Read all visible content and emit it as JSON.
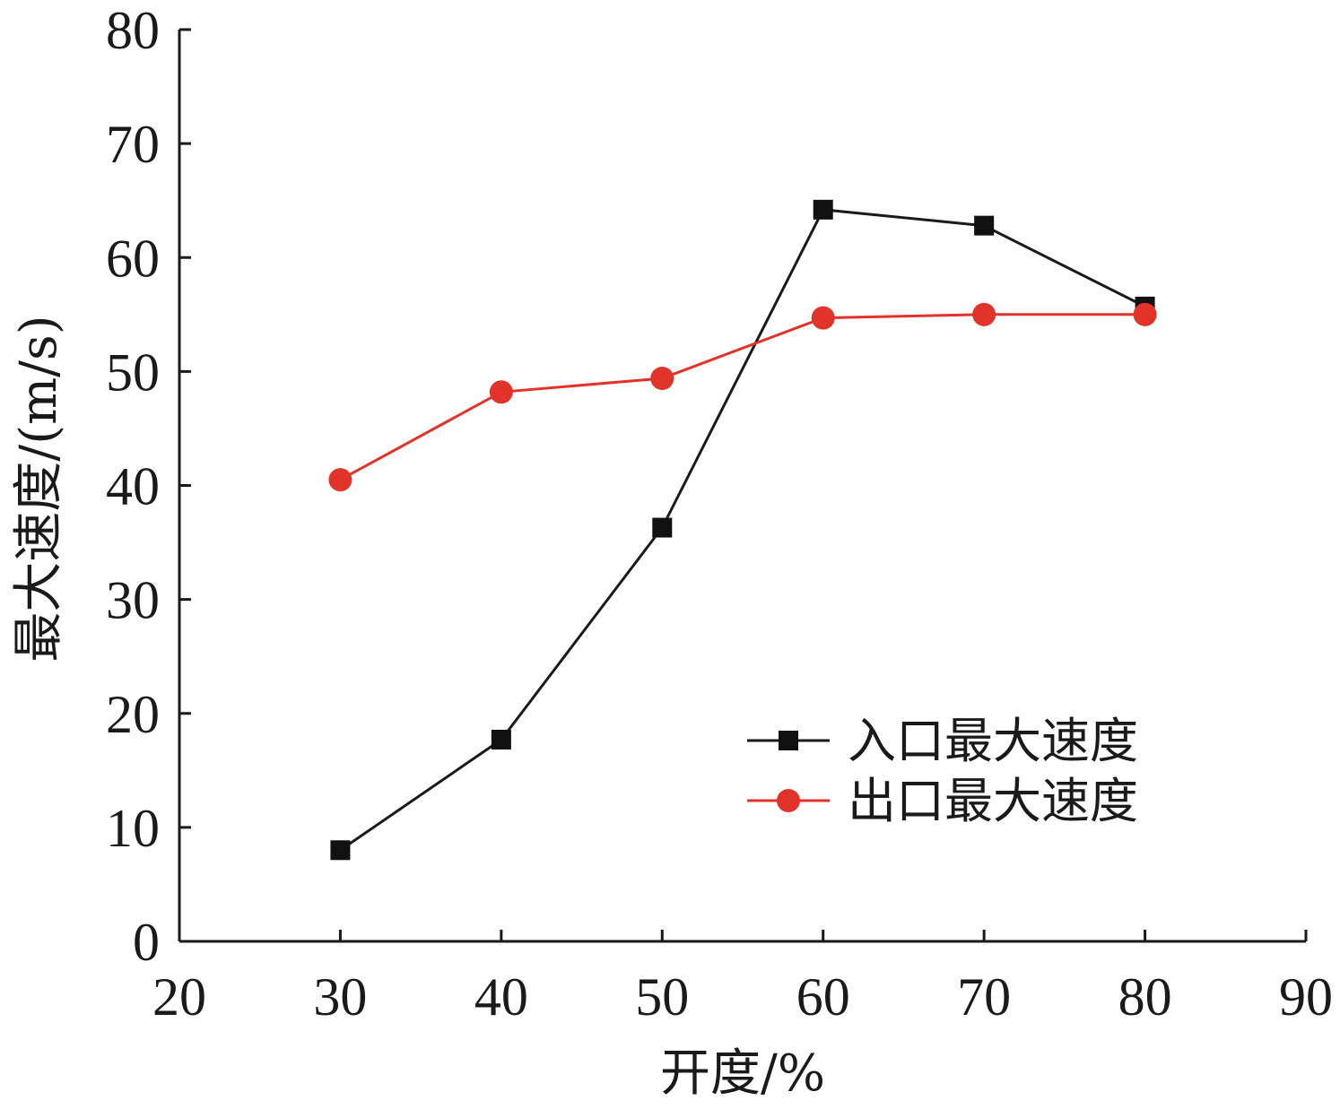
{
  "chart_data": {
    "type": "line",
    "title": "",
    "xlabel": "开度/%",
    "ylabel": "最大速度/(m/s)",
    "xlim": [
      20,
      90
    ],
    "ylim": [
      0,
      80
    ],
    "xticks": [
      20,
      30,
      40,
      50,
      60,
      70,
      80,
      90
    ],
    "yticks": [
      0,
      10,
      20,
      30,
      40,
      50,
      60,
      70,
      80
    ],
    "grid": false,
    "legend_position": "lower-right",
    "series": [
      {
        "name": "入口最大速度",
        "color": "#1a1a1a",
        "marker": "square",
        "x": [
          30,
          40,
          50,
          60,
          70,
          80
        ],
        "y": [
          8.0,
          17.7,
          36.3,
          64.2,
          62.8,
          55.7
        ]
      },
      {
        "name": "出口最大速度",
        "color": "#e2332b",
        "marker": "circle",
        "x": [
          30,
          40,
          50,
          60,
          70,
          80
        ],
        "y": [
          40.5,
          48.2,
          49.4,
          54.7,
          55.0,
          55.0
        ]
      }
    ]
  }
}
